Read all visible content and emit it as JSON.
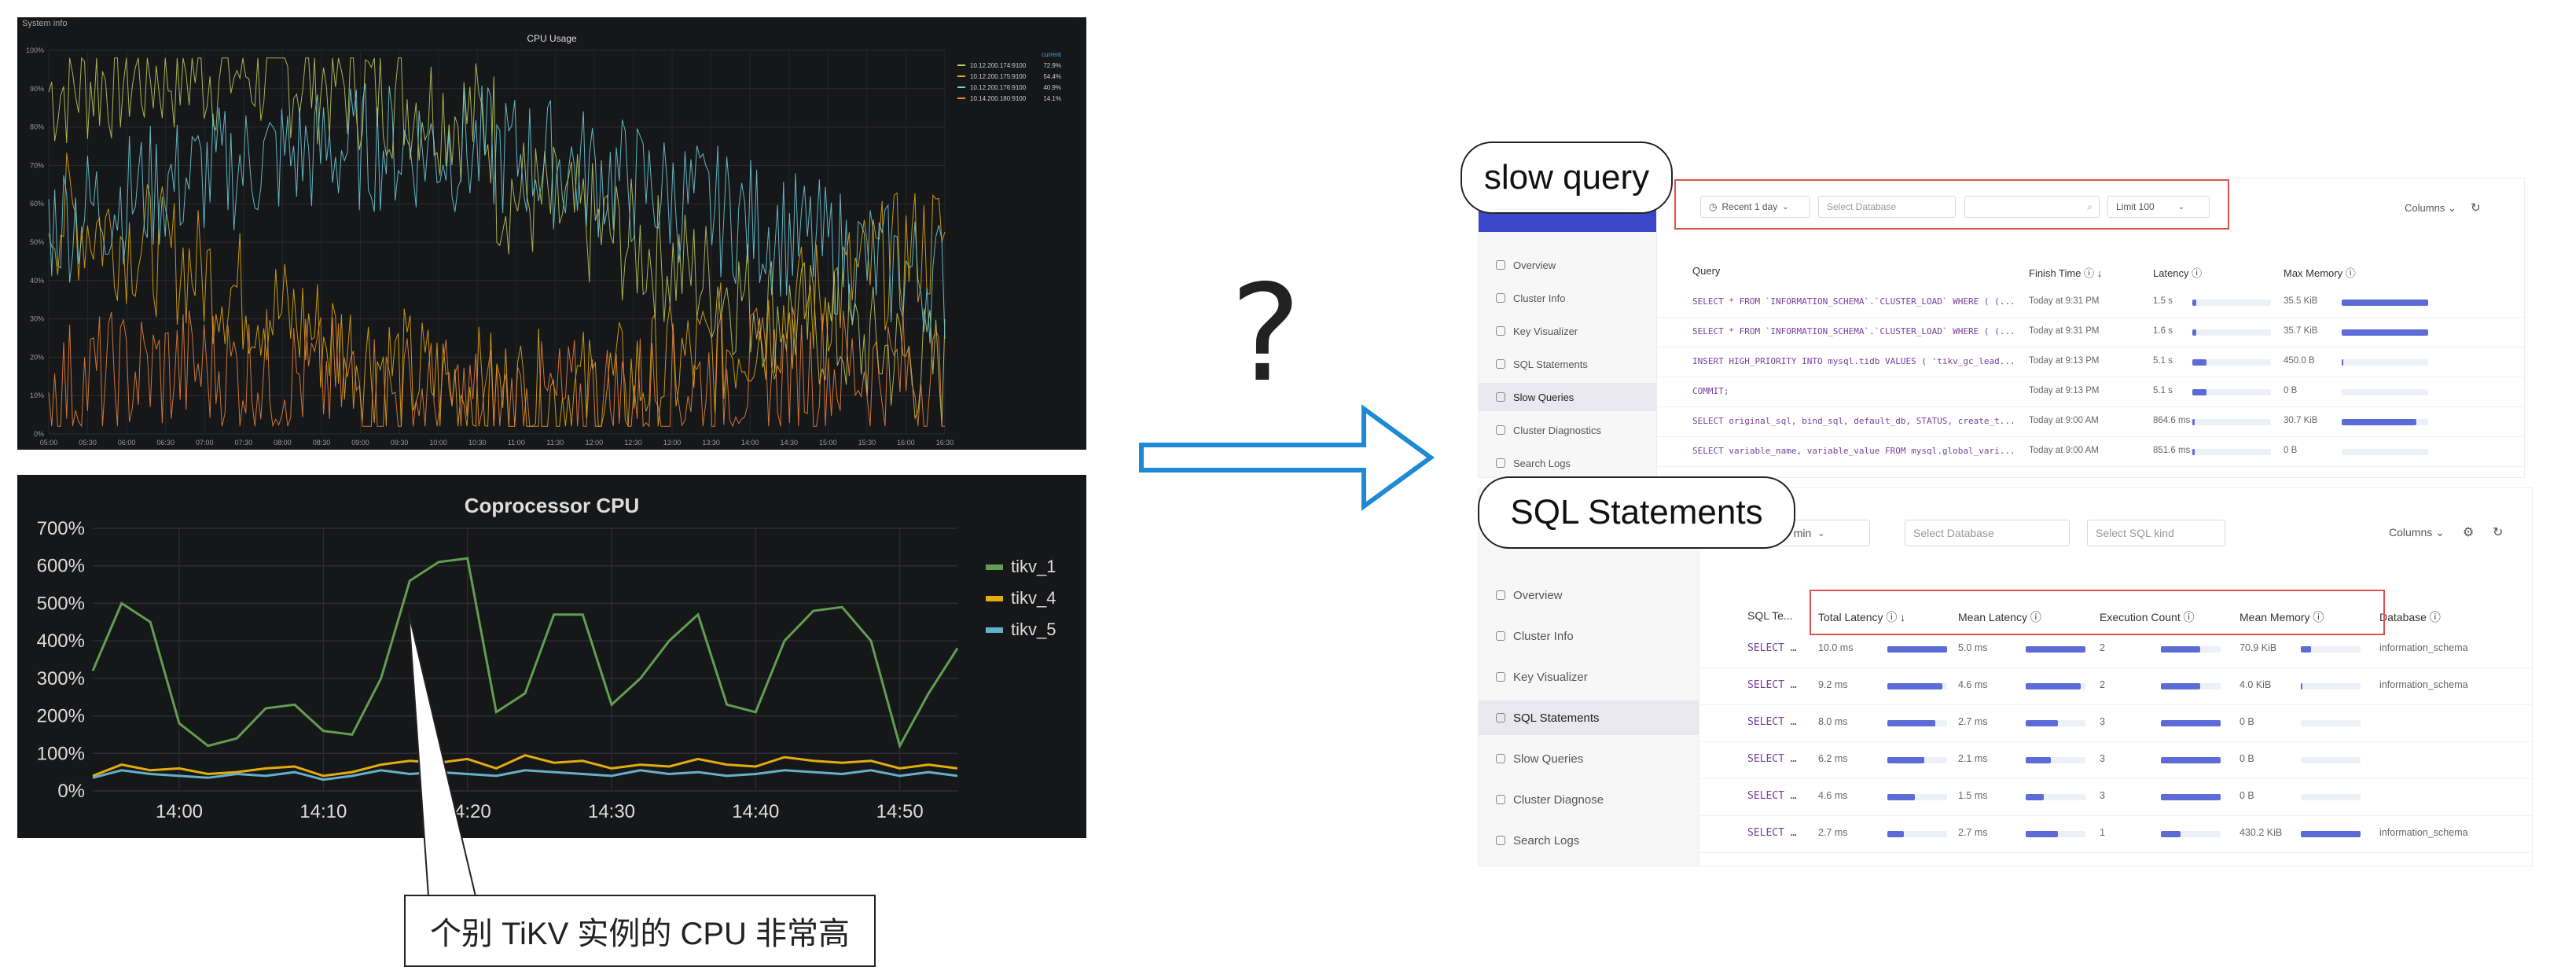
{
  "cpu_chart": {
    "header": "System info",
    "title": "CPU Usage",
    "legend_head": "current",
    "y_ticks": [
      "100%",
      "90%",
      "80%",
      "70%",
      "60%",
      "50%",
      "40%",
      "30%",
      "20%",
      "10%",
      "0%"
    ],
    "x_ticks": [
      "05:00",
      "05:30",
      "06:00",
      "06:30",
      "07:00",
      "07:30",
      "08:00",
      "08:30",
      "09:00",
      "09:30",
      "10:00",
      "10:30",
      "11:00",
      "11:30",
      "12:00",
      "12:30",
      "13:00",
      "13:30",
      "14:00",
      "14:30",
      "15:00",
      "15:30",
      "16:00",
      "16:30"
    ],
    "legend": [
      {
        "name": "10.12.200.174:9100",
        "value": "72.9%",
        "color": "#c2cf5f"
      },
      {
        "name": "10.12.200.175:9100",
        "value": "54.4%",
        "color": "#e5ac0e"
      },
      {
        "name": "10.12.200.176:9100",
        "value": "40.9%",
        "color": "#6ed0e0"
      },
      {
        "name": "10.14.200.180:9100",
        "value": "14.1%",
        "color": "#ef843c"
      }
    ]
  },
  "chart_data": {
    "type": "line",
    "title": "Coprocessor CPU",
    "x": [
      "13:54",
      "13:56",
      "13:58",
      "14:00",
      "14:02",
      "14:04",
      "14:06",
      "14:08",
      "14:10",
      "14:12",
      "14:14",
      "14:16",
      "14:18",
      "14:20",
      "14:22",
      "14:24",
      "14:26",
      "14:28",
      "14:30",
      "14:32",
      "14:34",
      "14:36",
      "14:38",
      "14:40",
      "14:42",
      "14:44",
      "14:46",
      "14:48",
      "14:50",
      "14:52",
      "14:53"
    ],
    "x_ticks": [
      "14:00",
      "14:10",
      "14:20",
      "14:30",
      "14:40",
      "14:50"
    ],
    "y_ticks": [
      "700%",
      "600%",
      "500%",
      "400%",
      "300%",
      "200%",
      "100%",
      "0%"
    ],
    "ylim": [
      0,
      700
    ],
    "legend_position": "right",
    "series": [
      {
        "name": "tikv_1",
        "color": "#629e51",
        "values": [
          320,
          500,
          450,
          180,
          120,
          140,
          220,
          230,
          160,
          150,
          300,
          560,
          610,
          620,
          210,
          260,
          470,
          470,
          230,
          300,
          400,
          470,
          230,
          210,
          400,
          480,
          490,
          400,
          120,
          260,
          380
        ]
      },
      {
        "name": "tikv_4",
        "color": "#e5ac0e",
        "values": [
          40,
          70,
          55,
          60,
          45,
          50,
          60,
          65,
          40,
          50,
          70,
          80,
          75,
          85,
          60,
          95,
          75,
          80,
          60,
          70,
          65,
          85,
          70,
          65,
          90,
          80,
          75,
          80,
          60,
          70,
          60
        ]
      },
      {
        "name": "tikv_5",
        "color": "#64b0c8",
        "values": [
          35,
          55,
          45,
          40,
          35,
          45,
          40,
          50,
          30,
          40,
          55,
          45,
          50,
          45,
          40,
          55,
          50,
          45,
          40,
          55,
          45,
          50,
          40,
          45,
          55,
          50,
          45,
          55,
          40,
          50,
          40
        ]
      }
    ]
  },
  "annotation": {
    "text": "个别 TiKV 实例的 CPU 非常高"
  },
  "question": "?",
  "slow_query": {
    "label": "slow query",
    "toolbar": {
      "time": "Recent 1 day",
      "db": "Select Database",
      "search": "",
      "limit": "Limit 100",
      "columns": "Columns"
    },
    "sidebar": [
      "Overview",
      "Cluster Info",
      "Key Visualizer",
      "SQL Statements",
      "Slow Queries",
      "Cluster Diagnostics",
      "Search Logs"
    ],
    "active": 4,
    "headers": {
      "query": "Query",
      "finish": "Finish Time",
      "latency": "Latency",
      "memory": "Max Memory"
    },
    "rows": [
      {
        "query": "SELECT * FROM `INFORMATION_SCHEMA`.`CLUSTER_LOAD` WHERE ( (...",
        "finish": "Today at 9:31 PM",
        "latency": "1.5 s",
        "lat": 0.05,
        "memory": "35.5 KiB",
        "mem": 1.0
      },
      {
        "query": "SELECT * FROM `INFORMATION_SCHEMA`.`CLUSTER_LOAD` WHERE ( (...",
        "finish": "Today at 9:31 PM",
        "latency": "1.6 s",
        "lat": 0.05,
        "memory": "35.7 KiB",
        "mem": 1.0
      },
      {
        "query": "INSERT HIGH_PRIORITY INTO mysql.tidb VALUES ( 'tikv_gc_lead...",
        "finish": "Today at 9:13 PM",
        "latency": "5.1 s",
        "lat": 0.18,
        "memory": "450.0 B",
        "mem": 0.02
      },
      {
        "query": "COMMIT;",
        "finish": "Today at 9:13 PM",
        "latency": "5.1 s",
        "lat": 0.18,
        "memory": "0 B",
        "mem": 0.0
      },
      {
        "query": "SELECT original_sql, bind_sql, default_db, STATUS, create_t...",
        "finish": "Today at 9:00 AM",
        "latency": "864.6 ms",
        "lat": 0.03,
        "memory": "30.7 KiB",
        "mem": 0.86
      },
      {
        "query": "SELECT variable_name, variable_value FROM mysql.global_vari...",
        "finish": "Today at 9:00 AM",
        "latency": "851.6 ms",
        "lat": 0.03,
        "memory": "0 B",
        "mem": 0.0
      }
    ]
  },
  "sql_statements": {
    "label": "SQL Statements",
    "toolbar": {
      "time": "Recent 30 min",
      "db": "Select Database",
      "kind": "Select SQL kind",
      "columns": "Columns"
    },
    "sidebar": [
      "Overview",
      "Cluster Info",
      "Key Visualizer",
      "SQL Statements",
      "Slow Queries",
      "Cluster Diagnose",
      "Search Logs"
    ],
    "active": 3,
    "headers": {
      "sql": "SQL Te...",
      "total": "Total Latency",
      "mean": "Mean Latency",
      "count": "Execution Count",
      "memory": "Mean Memory",
      "db": "Database"
    },
    "rows": [
      {
        "sql": "SELECT …",
        "total": "10.0 ms",
        "t": 1.0,
        "mean": "5.0 ms",
        "m": 1.0,
        "count": "2",
        "c": 0.66,
        "memory": "70.9 KiB",
        "mm": 0.17,
        "db": "information_schema"
      },
      {
        "sql": "SELECT …",
        "total": "9.2 ms",
        "t": 0.92,
        "mean": "4.6 ms",
        "m": 0.92,
        "count": "2",
        "c": 0.66,
        "memory": "4.0 KiB",
        "mm": 0.01,
        "db": "information_schema"
      },
      {
        "sql": "SELECT …",
        "total": "8.0 ms",
        "t": 0.8,
        "mean": "2.7 ms",
        "m": 0.54,
        "count": "3",
        "c": 1.0,
        "memory": "0 B",
        "mm": 0.0,
        "db": ""
      },
      {
        "sql": "SELECT …",
        "total": "6.2 ms",
        "t": 0.62,
        "mean": "2.1 ms",
        "m": 0.42,
        "count": "3",
        "c": 1.0,
        "memory": "0 B",
        "mm": 0.0,
        "db": ""
      },
      {
        "sql": "SELECT …",
        "total": "4.6 ms",
        "t": 0.46,
        "mean": "1.5 ms",
        "m": 0.3,
        "count": "3",
        "c": 1.0,
        "memory": "0 B",
        "mm": 0.0,
        "db": ""
      },
      {
        "sql": "SELECT …",
        "total": "2.7 ms",
        "t": 0.27,
        "mean": "2.7 ms",
        "m": 0.54,
        "count": "1",
        "c": 0.33,
        "memory": "430.2 KiB",
        "mm": 1.0,
        "db": "information_schema"
      }
    ]
  }
}
